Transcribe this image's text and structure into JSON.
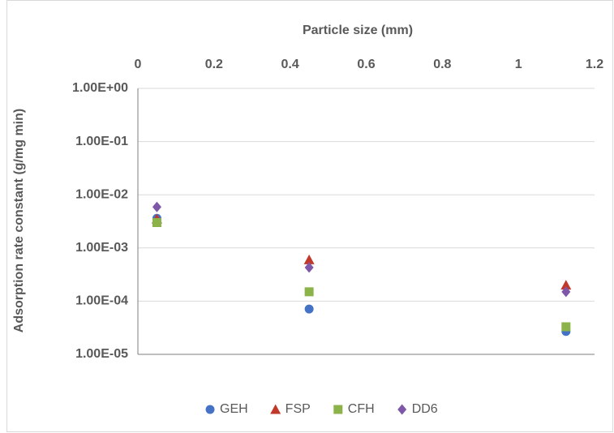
{
  "chart_data": {
    "type": "scatter",
    "x_label": "Particle size (mm)",
    "y_label": "Adsorption rate constant (g/mg min)",
    "x": [
      0.05,
      0.45,
      1.125
    ],
    "series": [
      {
        "name": "GEH",
        "color": "#4472c4",
        "marker": "circle",
        "values": [
          0.0036,
          7.1e-05,
          2.7e-05
        ]
      },
      {
        "name": "FSP",
        "color": "#c0392b",
        "marker": "triangle",
        "values": [
          0.0035,
          0.0006,
          0.0002
        ]
      },
      {
        "name": "CFH",
        "color": "#8cb34a",
        "marker": "square",
        "values": [
          0.003,
          0.00015,
          3.3e-05
        ]
      },
      {
        "name": "DD6",
        "color": "#7e57a8",
        "marker": "diamond",
        "values": [
          0.0059,
          0.00043,
          0.00015
        ]
      }
    ],
    "xlim": [
      0,
      1.2
    ],
    "xticks": [
      0,
      0.2,
      0.4,
      0.6,
      0.8,
      1,
      1.2
    ],
    "ylim": [
      1e-05,
      1
    ],
    "y_log_scale": true,
    "yticks": [
      {
        "value": 1e-05,
        "label": "1.00E-05"
      },
      {
        "value": 0.0001,
        "label": "1.00E-04"
      },
      {
        "value": 0.001,
        "label": "1.00E-03"
      },
      {
        "value": 0.01,
        "label": "1.00E-02"
      },
      {
        "value": 0.1,
        "label": "1.00E-01"
      },
      {
        "value": 1,
        "label": "1.00E+00"
      }
    ],
    "grid": true,
    "legend": "bottom"
  }
}
